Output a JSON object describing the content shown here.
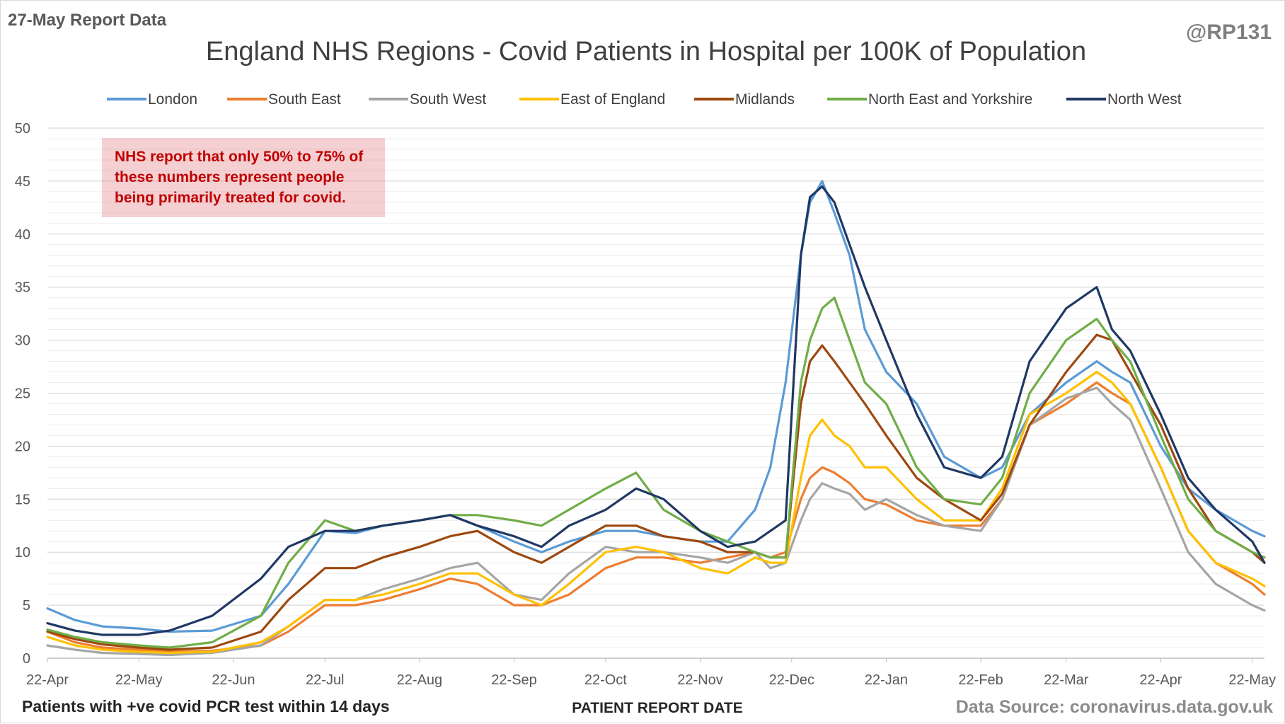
{
  "corner_text": {
    "top_left": "27-May Report Data",
    "top_right": "@RP131",
    "bottom_left": "Patients with +ve covid PCR test within 14 days",
    "bottom_right": "Data Source: coronavirus.data.gov.uk"
  },
  "annotation": "NHS report that only 50% to 75% of these numbers represent people being primarily treated for covid.",
  "chart_data": {
    "type": "line",
    "title": "England NHS Regions - Covid Patients in Hospital per 100K of Population",
    "xlabel": "PATIENT REPORT DATE",
    "ylabel": "",
    "ylim": [
      0,
      50
    ],
    "yticks": [
      0,
      5,
      10,
      15,
      20,
      25,
      30,
      35,
      40,
      45,
      50
    ],
    "xlim": [
      "22-Apr",
      "26-May"
    ],
    "xticks": [
      "22-Apr",
      "22-May",
      "22-Jun",
      "22-Jul",
      "22-Aug",
      "22-Sep",
      "22-Oct",
      "22-Nov",
      "22-Dec",
      "22-Jan",
      "22-Feb",
      "22-Mar",
      "22-Apr",
      "22-May"
    ],
    "grid": true,
    "legend_position": "top",
    "series": [
      {
        "name": "London",
        "color": "#5b9bd5",
        "x": [
          "22-Apr",
          "1-May",
          "10-May",
          "22-May",
          "1-Jun",
          "15-Jun",
          "1-Jul",
          "10-Jul",
          "22-Jul",
          "1-Aug",
          "10-Aug",
          "22-Aug",
          "1-Sep",
          "10-Sep",
          "22-Sep",
          "1-Oct",
          "10-Oct",
          "22-Oct",
          "1-Nov",
          "10-Nov",
          "22-Nov",
          "1-Dec",
          "10-Dec",
          "15-Dec",
          "20-Dec",
          "25-Dec",
          "28-Dec",
          "1-Jan",
          "5-Jan",
          "10-Jan",
          "15-Jan",
          "22-Jan",
          "1-Feb",
          "10-Feb",
          "22-Feb",
          "1-Mar",
          "10-Mar",
          "22-Mar",
          "1-Apr",
          "6-Apr",
          "12-Apr",
          "22-Apr",
          "1-May",
          "10-May",
          "22-May",
          "26-May"
        ],
        "y": [
          4.7,
          3.6,
          3.0,
          2.8,
          2.5,
          2.6,
          4.0,
          7.0,
          12.0,
          11.8,
          12.5,
          13.0,
          13.5,
          12.5,
          11.0,
          10.0,
          11.0,
          12.0,
          12.0,
          11.5,
          11.0,
          11.0,
          14.0,
          18.0,
          26.0,
          38.0,
          43.0,
          45.0,
          42.0,
          38.0,
          31.0,
          27.0,
          24.0,
          19.0,
          17.0,
          18.0,
          23.0,
          26.0,
          28.0,
          27.0,
          26.0,
          20.0,
          16.0,
          14.0,
          12.0,
          11.5
        ]
      },
      {
        "name": "South East",
        "color": "#ed7d31",
        "x": [
          "22-Apr",
          "1-May",
          "10-May",
          "22-May",
          "1-Jun",
          "15-Jun",
          "1-Jul",
          "10-Jul",
          "22-Jul",
          "1-Aug",
          "10-Aug",
          "22-Aug",
          "1-Sep",
          "10-Sep",
          "22-Sep",
          "1-Oct",
          "10-Oct",
          "22-Oct",
          "1-Nov",
          "10-Nov",
          "22-Nov",
          "1-Dec",
          "10-Dec",
          "15-Dec",
          "20-Dec",
          "25-Dec",
          "28-Dec",
          "1-Jan",
          "5-Jan",
          "10-Jan",
          "15-Jan",
          "22-Jan",
          "1-Feb",
          "10-Feb",
          "22-Feb",
          "1-Mar",
          "10-Mar",
          "22-Mar",
          "1-Apr",
          "6-Apr",
          "12-Apr",
          "22-Apr",
          "1-May",
          "10-May",
          "22-May",
          "26-May"
        ],
        "y": [
          2.5,
          1.5,
          1.0,
          0.8,
          0.6,
          0.7,
          1.2,
          2.5,
          5.0,
          5.0,
          5.5,
          6.5,
          7.5,
          7.0,
          5.0,
          5.0,
          6.0,
          8.5,
          9.5,
          9.5,
          9.0,
          9.5,
          10.0,
          9.5,
          10.0,
          15.0,
          17.0,
          18.0,
          17.5,
          16.5,
          15.0,
          14.5,
          13.0,
          12.5,
          12.5,
          15.0,
          22.0,
          24.0,
          26.0,
          25.0,
          24.0,
          18.0,
          12.0,
          9.0,
          7.0,
          6.0
        ]
      },
      {
        "name": "South West",
        "color": "#a5a5a5",
        "x": [
          "22-Apr",
          "1-May",
          "10-May",
          "22-May",
          "1-Jun",
          "15-Jun",
          "1-Jul",
          "10-Jul",
          "22-Jul",
          "1-Aug",
          "10-Aug",
          "22-Aug",
          "1-Sep",
          "10-Sep",
          "22-Sep",
          "1-Oct",
          "10-Oct",
          "22-Oct",
          "1-Nov",
          "10-Nov",
          "22-Nov",
          "1-Dec",
          "10-Dec",
          "15-Dec",
          "20-Dec",
          "25-Dec",
          "28-Dec",
          "1-Jan",
          "5-Jan",
          "10-Jan",
          "15-Jan",
          "22-Jan",
          "1-Feb",
          "10-Feb",
          "22-Feb",
          "1-Mar",
          "10-Mar",
          "22-Mar",
          "1-Apr",
          "6-Apr",
          "12-Apr",
          "22-Apr",
          "1-May",
          "10-May",
          "22-May",
          "26-May"
        ],
        "y": [
          1.2,
          0.8,
          0.5,
          0.4,
          0.3,
          0.5,
          1.2,
          3.0,
          5.5,
          5.5,
          6.5,
          7.5,
          8.5,
          9.0,
          6.0,
          5.5,
          8.0,
          10.5,
          10.0,
          10.0,
          9.5,
          9.0,
          10.0,
          8.5,
          9.0,
          13.0,
          15.0,
          16.5,
          16.0,
          15.5,
          14.0,
          15.0,
          13.5,
          12.5,
          12.0,
          15.0,
          22.0,
          24.5,
          25.5,
          24.0,
          22.5,
          16.0,
          10.0,
          7.0,
          5.0,
          4.5
        ]
      },
      {
        "name": "East of England",
        "color": "#ffc000",
        "x": [
          "22-Apr",
          "1-May",
          "10-May",
          "22-May",
          "1-Jun",
          "15-Jun",
          "1-Jul",
          "10-Jul",
          "22-Jul",
          "1-Aug",
          "10-Aug",
          "22-Aug",
          "1-Sep",
          "10-Sep",
          "22-Sep",
          "1-Oct",
          "10-Oct",
          "22-Oct",
          "1-Nov",
          "10-Nov",
          "22-Nov",
          "1-Dec",
          "10-Dec",
          "15-Dec",
          "20-Dec",
          "25-Dec",
          "28-Dec",
          "1-Jan",
          "5-Jan",
          "10-Jan",
          "15-Jan",
          "22-Jan",
          "1-Feb",
          "10-Feb",
          "22-Feb",
          "1-Mar",
          "10-Mar",
          "22-Mar",
          "1-Apr",
          "6-Apr",
          "12-Apr",
          "22-Apr",
          "1-May",
          "10-May",
          "22-May",
          "26-May"
        ],
        "y": [
          2.0,
          1.2,
          0.8,
          0.6,
          0.5,
          0.6,
          1.5,
          3.0,
          5.5,
          5.5,
          6.0,
          7.0,
          8.0,
          8.0,
          6.0,
          5.0,
          7.0,
          10.0,
          10.5,
          10.0,
          8.5,
          8.0,
          9.5,
          9.0,
          9.0,
          17.0,
          21.0,
          22.5,
          21.0,
          20.0,
          18.0,
          18.0,
          15.0,
          13.0,
          13.0,
          16.0,
          23.0,
          25.0,
          27.0,
          26.0,
          24.0,
          18.0,
          12.0,
          9.0,
          7.5,
          6.8
        ]
      },
      {
        "name": "Midlands",
        "color": "#9e480e",
        "x": [
          "22-Apr",
          "1-May",
          "10-May",
          "22-May",
          "1-Jun",
          "15-Jun",
          "1-Jul",
          "10-Jul",
          "22-Jul",
          "1-Aug",
          "10-Aug",
          "22-Aug",
          "1-Sep",
          "10-Sep",
          "22-Sep",
          "1-Oct",
          "10-Oct",
          "22-Oct",
          "1-Nov",
          "10-Nov",
          "22-Nov",
          "1-Dec",
          "10-Dec",
          "15-Dec",
          "20-Dec",
          "25-Dec",
          "28-Dec",
          "1-Jan",
          "5-Jan",
          "10-Jan",
          "15-Jan",
          "22-Jan",
          "1-Feb",
          "10-Feb",
          "22-Feb",
          "1-Mar",
          "10-Mar",
          "22-Mar",
          "1-Apr",
          "6-Apr",
          "12-Apr",
          "22-Apr",
          "1-May",
          "10-May",
          "22-May",
          "26-May"
        ],
        "y": [
          2.5,
          1.8,
          1.3,
          1.0,
          0.8,
          1.0,
          2.5,
          5.5,
          8.5,
          8.5,
          9.5,
          10.5,
          11.5,
          12.0,
          10.0,
          9.0,
          10.5,
          12.5,
          12.5,
          11.5,
          11.0,
          10.0,
          10.0,
          9.5,
          9.5,
          24.0,
          28.0,
          29.5,
          28.0,
          26.0,
          24.0,
          21.0,
          17.0,
          15.0,
          13.0,
          15.5,
          22.0,
          27.0,
          30.5,
          30.0,
          27.0,
          22.0,
          16.0,
          12.0,
          10.0,
          9.0
        ]
      },
      {
        "name": "North East and Yorkshire",
        "color": "#70ad47",
        "x": [
          "22-Apr",
          "1-May",
          "10-May",
          "22-May",
          "1-Jun",
          "15-Jun",
          "1-Jul",
          "10-Jul",
          "22-Jul",
          "1-Aug",
          "10-Aug",
          "22-Aug",
          "1-Sep",
          "10-Sep",
          "22-Sep",
          "1-Oct",
          "10-Oct",
          "22-Oct",
          "1-Nov",
          "10-Nov",
          "22-Nov",
          "1-Dec",
          "10-Dec",
          "15-Dec",
          "20-Dec",
          "25-Dec",
          "28-Dec",
          "1-Jan",
          "5-Jan",
          "10-Jan",
          "15-Jan",
          "22-Jan",
          "1-Feb",
          "10-Feb",
          "22-Feb",
          "1-Mar",
          "10-Mar",
          "22-Mar",
          "1-Apr",
          "6-Apr",
          "12-Apr",
          "22-Apr",
          "1-May",
          "10-May",
          "22-May",
          "26-May"
        ],
        "y": [
          2.7,
          2.0,
          1.5,
          1.2,
          1.0,
          1.5,
          4.0,
          9.0,
          13.0,
          12.0,
          12.5,
          13.0,
          13.5,
          13.5,
          13.0,
          12.5,
          14.0,
          16.0,
          17.5,
          14.0,
          12.0,
          11.0,
          10.0,
          9.5,
          9.5,
          26.0,
          30.0,
          33.0,
          34.0,
          30.0,
          26.0,
          24.0,
          18.0,
          15.0,
          14.5,
          17.0,
          25.0,
          30.0,
          32.0,
          30.0,
          28.0,
          21.0,
          15.0,
          12.0,
          10.0,
          9.5
        ]
      },
      {
        "name": "North West",
        "color": "#203864",
        "x": [
          "22-Apr",
          "1-May",
          "10-May",
          "22-May",
          "1-Jun",
          "15-Jun",
          "1-Jul",
          "10-Jul",
          "22-Jul",
          "1-Aug",
          "10-Aug",
          "22-Aug",
          "1-Sep",
          "10-Sep",
          "22-Sep",
          "1-Oct",
          "10-Oct",
          "22-Oct",
          "1-Nov",
          "10-Nov",
          "22-Nov",
          "1-Dec",
          "10-Dec",
          "15-Dec",
          "20-Dec",
          "25-Dec",
          "28-Dec",
          "1-Jan",
          "5-Jan",
          "10-Jan",
          "15-Jan",
          "22-Jan",
          "1-Feb",
          "10-Feb",
          "22-Feb",
          "1-Mar",
          "10-Mar",
          "22-Mar",
          "1-Apr",
          "6-Apr",
          "12-Apr",
          "22-Apr",
          "1-May",
          "10-May",
          "22-May",
          "26-May"
        ],
        "y": [
          3.3,
          2.6,
          2.2,
          2.2,
          2.6,
          4.0,
          7.5,
          10.5,
          12.0,
          12.0,
          12.5,
          13.0,
          13.5,
          12.5,
          11.5,
          10.5,
          12.5,
          14.0,
          16.0,
          15.0,
          12.0,
          10.5,
          11.0,
          12.0,
          13.0,
          38.0,
          43.5,
          44.5,
          43.0,
          39.0,
          35.0,
          30.0,
          23.0,
          18.0,
          17.0,
          19.0,
          28.0,
          33.0,
          35.0,
          31.0,
          29.0,
          23.0,
          17.0,
          14.0,
          11.0,
          9.0
        ]
      }
    ]
  }
}
